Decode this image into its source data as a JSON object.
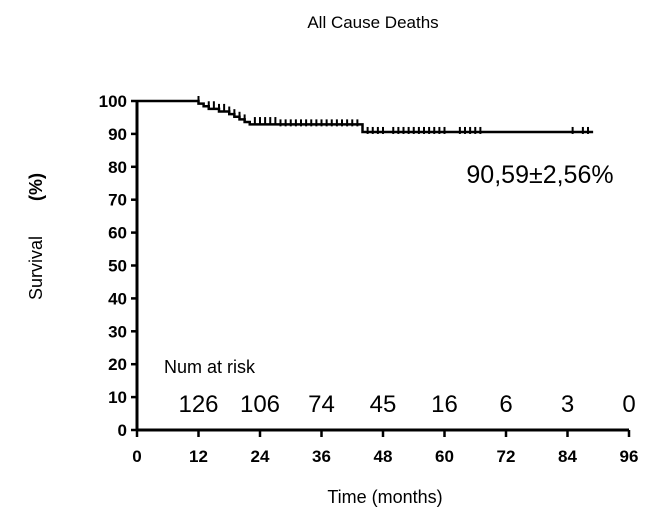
{
  "chart_data": {
    "type": "line",
    "title": "All Cause Deaths",
    "xlabel": "Time (months)",
    "ylabel": "Survival",
    "ylabel_unit": "(%)",
    "xlim": [
      0,
      96
    ],
    "ylim": [
      0,
      100
    ],
    "x_ticks": [
      "0",
      "12",
      "24",
      "36",
      "48",
      "60",
      "72",
      "84",
      "96"
    ],
    "y_ticks": [
      "0",
      "10",
      "20",
      "30",
      "40",
      "50",
      "60",
      "70",
      "80",
      "90",
      "100"
    ],
    "grid": false,
    "series": [
      {
        "x": [
          0,
          12,
          13,
          14,
          16,
          18,
          19,
          20,
          21,
          22,
          28,
          44,
          89
        ],
        "y": [
          100,
          99.2,
          98.4,
          97.6,
          96.8,
          96.0,
          95.2,
          94.4,
          93.6,
          92.9,
          92.9,
          90.59,
          90.59
        ]
      }
    ],
    "censor_marks": {
      "x": [
        12,
        14,
        15,
        16,
        17,
        18,
        19,
        20,
        21,
        23,
        24,
        25,
        26,
        27,
        28,
        29,
        30,
        31,
        32,
        33,
        34,
        35,
        36,
        37,
        38,
        39,
        40,
        41,
        42,
        43,
        45,
        46,
        47,
        48,
        50,
        51,
        52,
        53,
        54,
        55,
        56,
        57,
        58,
        59,
        60,
        63,
        64,
        65,
        66,
        67,
        85,
        87,
        88
      ],
      "y": [
        100,
        98.4,
        98.4,
        97.6,
        97.6,
        96.8,
        96.0,
        95.2,
        94.4,
        93.6,
        93.6,
        93.6,
        93.6,
        93.6,
        92.9,
        92.9,
        92.9,
        92.9,
        92.9,
        92.9,
        92.9,
        92.9,
        92.9,
        92.9,
        92.9,
        92.9,
        92.9,
        92.9,
        92.9,
        92.9,
        90.59,
        90.59,
        90.59,
        90.59,
        90.59,
        90.59,
        90.59,
        90.59,
        90.59,
        90.59,
        90.59,
        90.59,
        90.59,
        90.59,
        90.59,
        90.59,
        90.59,
        90.59,
        90.59,
        90.59,
        90.59,
        90.59,
        90.59
      ]
    },
    "annotation": "90,59±2,56%",
    "risk_table": {
      "title": "Num at risk",
      "times": [
        12,
        24,
        36,
        48,
        60,
        72,
        84,
        96
      ],
      "counts": [
        "126",
        "106",
        "74",
        "45",
        "16",
        "6",
        "3",
        "0"
      ]
    },
    "colors": {
      "line": "#000000",
      "axis": "#000000"
    }
  }
}
